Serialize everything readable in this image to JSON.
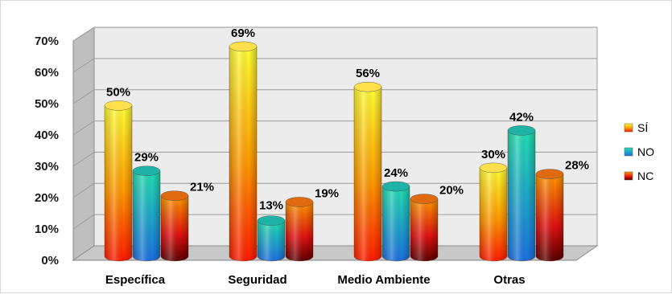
{
  "chart_data": {
    "type": "bar",
    "title": "",
    "xlabel": "",
    "ylabel": "",
    "categories": [
      "Específica",
      "Seguridad",
      "Medio Ambiente",
      "Otras"
    ],
    "series": [
      {
        "name": "SÍ",
        "values": [
          50,
          69,
          56,
          30
        ],
        "labels": [
          "50%",
          "69%",
          "56%",
          "30%"
        ],
        "color": "#ff9a00"
      },
      {
        "name": "NO",
        "values": [
          29,
          13,
          24,
          42
        ],
        "labels": [
          "29%",
          "13%",
          "24%",
          "42%"
        ],
        "color": "#1ec0c0"
      },
      {
        "name": "NC",
        "values": [
          21,
          19,
          20,
          28
        ],
        "labels": [
          "21%",
          "19%",
          "20%",
          "28%"
        ],
        "color": "#c00000"
      }
    ],
    "y_ticks": [
      "0%",
      "10%",
      "20%",
      "30%",
      "40%",
      "50%",
      "60%",
      "70%"
    ],
    "ylim": [
      0,
      70
    ],
    "grid": true,
    "legend_position": "right",
    "style": "3d-cylinder"
  }
}
